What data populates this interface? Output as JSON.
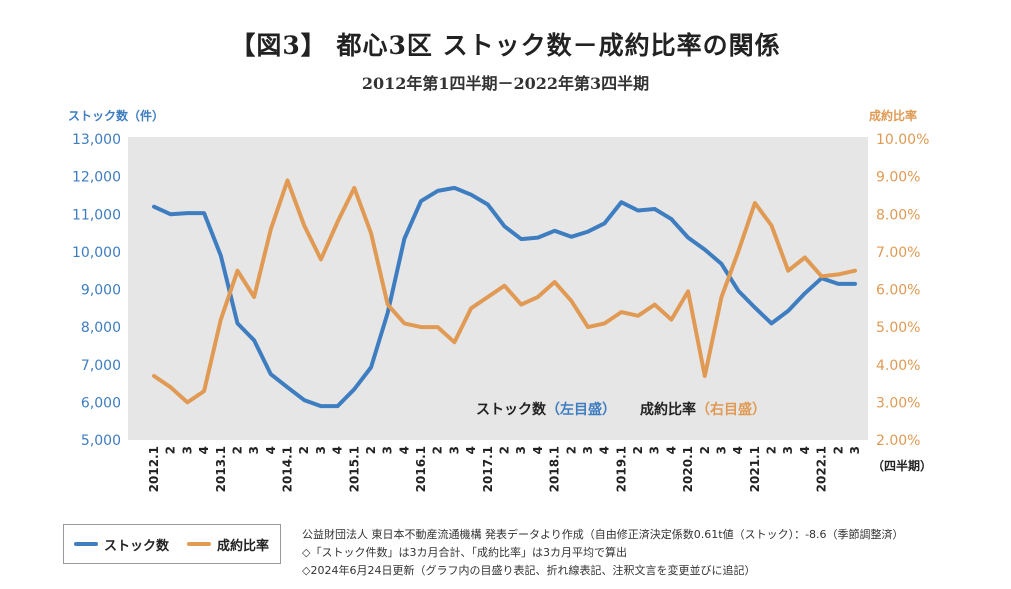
{
  "title": "【図3】 都心3区 ストック数－成約比率の関係",
  "subtitle": "2012年第1四半期－2022年第3四半期",
  "chart_data": {
    "type": "line",
    "y_left_label": "ストック数（件）",
    "y_right_label": "成約比率",
    "x_unit_label": "（四半期）",
    "y_left_ticks": [
      "13,000",
      "12,000",
      "11,000",
      "10,000",
      "9,000",
      "8,000",
      "7,000",
      "6,000",
      "5,000"
    ],
    "y_right_ticks": [
      "10.00%",
      "9.00%",
      "8.00%",
      "7.00%",
      "6.00%",
      "5.00%",
      "4.00%",
      "3.00%",
      "2.00%"
    ],
    "ylim_left": [
      5000,
      13000
    ],
    "ylim_right": [
      2.0,
      10.0
    ],
    "x_tick_labels": [
      "2012.1",
      "2",
      "3",
      "4",
      "2013.1",
      "2",
      "3",
      "4",
      "2014.1",
      "2",
      "3",
      "4",
      "2015.1",
      "2",
      "3",
      "4",
      "2016.1",
      "2",
      "3",
      "4",
      "2017.1",
      "2",
      "3",
      "4",
      "2018.1",
      "2",
      "3",
      "4",
      "2019.1",
      "2",
      "3",
      "4",
      "2020.1",
      "2",
      "3",
      "4",
      "2021.1",
      "2",
      "3",
      "4",
      "2022.1",
      "2",
      "3"
    ],
    "series": [
      {
        "name": "ストック数",
        "axis": "left",
        "color": "#3e7dc0",
        "values": [
          11200,
          11000,
          11030,
          11030,
          9900,
          8100,
          7650,
          6750,
          6400,
          6060,
          5900,
          5900,
          6350,
          6930,
          8380,
          10350,
          11350,
          11620,
          11700,
          11520,
          11260,
          10680,
          10340,
          10380,
          10560,
          10400,
          10540,
          10760,
          11320,
          11100,
          11140,
          10870,
          10380,
          10060,
          9680,
          8970,
          8520,
          8100,
          8430,
          8900,
          9300,
          9150,
          9150
        ]
      },
      {
        "name": "成約比率",
        "axis": "right",
        "color": "#e09a54",
        "values": [
          3.7,
          3.4,
          3.0,
          3.3,
          5.2,
          6.5,
          5.8,
          7.6,
          8.9,
          7.7,
          6.8,
          7.8,
          8.7,
          7.5,
          5.6,
          5.1,
          5.0,
          5.0,
          4.6,
          5.5,
          5.8,
          6.1,
          5.6,
          5.8,
          6.2,
          5.7,
          5.0,
          5.1,
          5.4,
          5.3,
          5.6,
          5.2,
          5.95,
          3.7,
          5.8,
          7.0,
          8.3,
          7.7,
          6.5,
          6.85,
          6.35,
          6.4,
          6.5
        ]
      }
    ],
    "annotation": {
      "stock_label": "ストック数",
      "stock_axis": "（左目盛）",
      "ratio_label": "成約比率",
      "ratio_axis": "（右目盛）"
    },
    "grid": false,
    "legend": "bottom-left"
  },
  "legend": {
    "stock": "ストック数",
    "ratio": "成約比率"
  },
  "notes": [
    "公益財団法人 東日本不動産流通機構 発表データより作成（自由修正済決定係数0.61t値（ストック）：-8.6（季節調整済）",
    "◇「ストック件数」は3カ月合計、「成約比率」は3カ月平均で算出",
    "◇2024年6月24日更新（グラフ内の目盛り表記、折れ線表記、注釈文言を変更並びに追記）"
  ]
}
